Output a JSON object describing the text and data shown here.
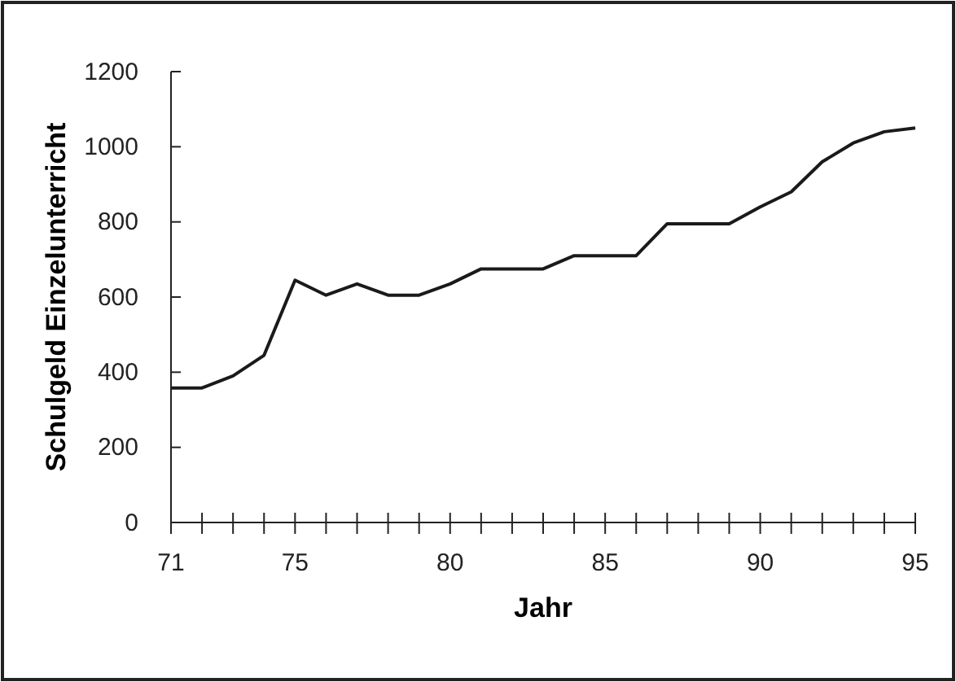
{
  "chart_data": {
    "type": "line",
    "xlabel": "Jahr",
    "ylabel": "Schulgeld Einzelunterricht",
    "x": [
      71,
      72,
      73,
      74,
      75,
      76,
      77,
      78,
      79,
      80,
      81,
      82,
      83,
      84,
      85,
      86,
      87,
      88,
      89,
      90,
      91,
      92,
      93,
      94,
      95
    ],
    "series": [
      {
        "color": "#1a1a1a",
        "values": [
          358,
          358,
          390,
          445,
          645,
          605,
          635,
          605,
          605,
          635,
          675,
          675,
          675,
          710,
          710,
          710,
          795,
          795,
          795,
          840,
          880,
          960,
          1010,
          1040,
          1050
        ]
      }
    ],
    "xlim": [
      71,
      95
    ],
    "ylim": [
      0,
      1200
    ],
    "xticks": [
      71,
      {
        "value": 72,
        "label": null
      },
      {
        "value": 73,
        "label": null
      },
      {
        "value": 74,
        "label": null
      },
      75,
      {
        "value": 76,
        "label": null
      },
      {
        "value": 77,
        "label": null
      },
      {
        "value": 78,
        "label": null
      },
      {
        "value": 79,
        "label": null
      },
      80,
      {
        "value": 81,
        "label": null
      },
      {
        "value": 82,
        "label": null
      },
      {
        "value": 83,
        "label": null
      },
      {
        "value": 84,
        "label": null
      },
      85,
      {
        "value": 86,
        "label": null
      },
      {
        "value": 87,
        "label": null
      },
      {
        "value": 88,
        "label": null
      },
      {
        "value": 89,
        "label": null
      },
      90,
      {
        "value": 91,
        "label": null
      },
      {
        "value": 92,
        "label": null
      },
      {
        "value": 93,
        "label": null
      },
      {
        "value": 94,
        "label": null
      },
      95
    ],
    "yticks": [
      0,
      200,
      400,
      600,
      800,
      1000,
      1200
    ],
    "grid": false,
    "marker": "none",
    "line_style": "solid"
  }
}
